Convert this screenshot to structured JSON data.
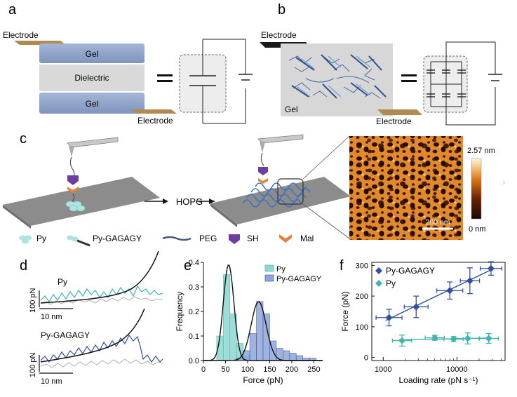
{
  "panels": {
    "a": {
      "letter": "a",
      "electrode_top": "Electrode",
      "gel_top": "Gel",
      "dielectric": "Dielectric",
      "gel_bottom": "Gel",
      "electrode_bottom": "Electrode",
      "equals": "="
    },
    "b": {
      "letter": "b",
      "electrode_top": "Electrode",
      "gel": "Gel",
      "electrode_bottom": "Electrode",
      "equals": "="
    },
    "c": {
      "letter": "c",
      "hopg": "HOPG",
      "afm_scale_max": "2.57 nm",
      "afm_scale_min": "0 nm",
      "afm_scalebar": "200 nm",
      "legend": {
        "py": "Py",
        "py_gagagy": "Py-GAGAGY",
        "peg": "PEG",
        "sh": "SH",
        "mal": "Mal"
      }
    },
    "d": {
      "letter": "d",
      "label_top": "Py",
      "label_bottom": "Py-GAGAGY",
      "y_scale_top": "100 pN",
      "y_scale_bottom": "100 pN",
      "x_scale_top": "10 nm",
      "x_scale_bottom": "10 nm"
    },
    "e": {
      "letter": "e"
    },
    "f": {
      "letter": "f"
    }
  },
  "colors": {
    "py": "#3fb5ad",
    "py_gagagy": "#2f4f9f",
    "gel": "#8ea3c7",
    "dielectric": "#d9d9d9",
    "electrode": "#b08a52",
    "sh": "#6b3fa0",
    "mal": "#e8803a"
  },
  "chart_data": [
    {
      "type": "bar",
      "panel": "e",
      "xlabel": "Force (pN)",
      "ylabel": "Frequency",
      "xlim": [
        0,
        270
      ],
      "ylim": [
        0,
        0.4
      ],
      "xticks": [
        "0",
        "50",
        "100",
        "150",
        "200",
        "250"
      ],
      "yticks": [
        "0.0",
        "0.1",
        "0.2",
        "0.3",
        "0.4"
      ],
      "legend": [
        "Py",
        "Py-GAGAGY"
      ],
      "legend_position": "top-right",
      "bin_width": 15,
      "series": [
        {
          "name": "Py",
          "bin_starts": [
            30,
            45,
            60,
            75,
            90
          ],
          "values": [
            0.1,
            0.35,
            0.19,
            0.07,
            0.02
          ],
          "fit_center": 57,
          "fit_peak": 0.39
        },
        {
          "name": "Py-GAGAGY",
          "bin_starts": [
            75,
            90,
            105,
            120,
            135,
            150,
            165,
            180,
            195,
            210,
            225,
            240
          ],
          "values": [
            0.01,
            0.04,
            0.11,
            0.24,
            0.19,
            0.08,
            0.05,
            0.04,
            0.03,
            0.02,
            0.01,
            0.01
          ],
          "fit_center": 125,
          "fit_peak": 0.24
        }
      ]
    },
    {
      "type": "scatter",
      "panel": "f",
      "xlabel": "Loading rate (pN s⁻¹)",
      "ylabel": "Force (pN)",
      "xscale": "log",
      "xlim": [
        700,
        45000
      ],
      "ylim": [
        -10,
        310
      ],
      "xticks": [
        "1000",
        "10000"
      ],
      "yticks": [
        "0",
        "100",
        "200",
        "300"
      ],
      "legend": [
        "Py-GAGAGY",
        "Py"
      ],
      "legend_position": "top-left",
      "series": [
        {
          "name": "Py-GAGAGY",
          "x": [
            1200,
            2800,
            8000,
            15000,
            29000
          ],
          "y": [
            130,
            165,
            218,
            250,
            290
          ],
          "yerr": [
            27,
            35,
            28,
            42,
            22
          ],
          "xerr_factor": [
            1.5,
            1.45,
            1.5,
            1.35,
            1.4
          ],
          "fit": true
        },
        {
          "name": "Py",
          "x": [
            1800,
            5000,
            9000,
            14000,
            27000
          ],
          "y": [
            55,
            64,
            60,
            62,
            62
          ],
          "yerr": [
            18,
            8,
            8,
            18,
            16
          ],
          "xerr_factor": [
            1.35,
            1.35,
            1.35,
            1.45,
            1.35
          ],
          "fit": true
        }
      ]
    }
  ]
}
